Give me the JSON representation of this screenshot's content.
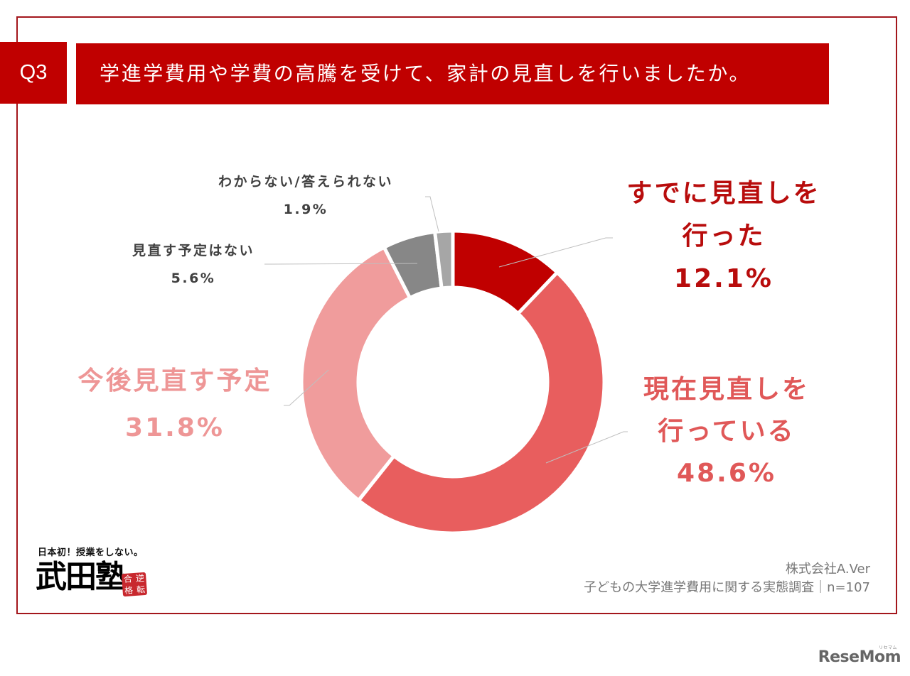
{
  "header": {
    "question_number": "Q3",
    "title": "学進学費用や学費の高騰を受けて、家計の見直しを行いましたか。"
  },
  "chart_data": {
    "type": "pie",
    "donut": true,
    "title": "学進学費用や学費の高騰を受けて、家計の見直しを行いましたか。",
    "categories": [
      "すでに見直しを行った",
      "現在見直しを行っている",
      "今後見直す予定",
      "見直す予定はない",
      "わからない/答えられない"
    ],
    "values": [
      12.1,
      48.6,
      31.8,
      5.6,
      1.9
    ],
    "unit": "%",
    "colors": [
      "#C00000",
      "#E85E5E",
      "#F09C9C",
      "#878787",
      "#A6A6A6"
    ],
    "label_colors": [
      "#B80C0C",
      "#E05858",
      "#EE9696",
      "#404040",
      "#404040"
    ],
    "start_angle": "12 o'clock, clockwise",
    "legend": "none (direct labels with leader lines)",
    "sample_size": "n=107"
  },
  "labels": {
    "already": {
      "line1": "すでに見直しを",
      "line2": "行った",
      "value": "12.1%"
    },
    "current": {
      "line1": "現在見直しを",
      "line2": "行っている",
      "value": "48.6%"
    },
    "plan": {
      "line1": "今後見直す予定",
      "value": "31.8%"
    },
    "noplan": {
      "line1": "見直す予定はない",
      "value": "5.6%"
    },
    "unknown": {
      "line1": "わからない/答えられない",
      "value": "1.9%"
    }
  },
  "footer": {
    "company": "株式会社A.Ver",
    "survey": "子どもの大学進学費用に関する実態調査｜n=107"
  },
  "logo": {
    "tagline": "日本初！授業をしない。",
    "name": "武田塾",
    "stamp": [
      "合",
      "逆",
      "格",
      "転"
    ]
  },
  "watermark": {
    "text": "ReseMom",
    "ruby": "リセマム"
  }
}
